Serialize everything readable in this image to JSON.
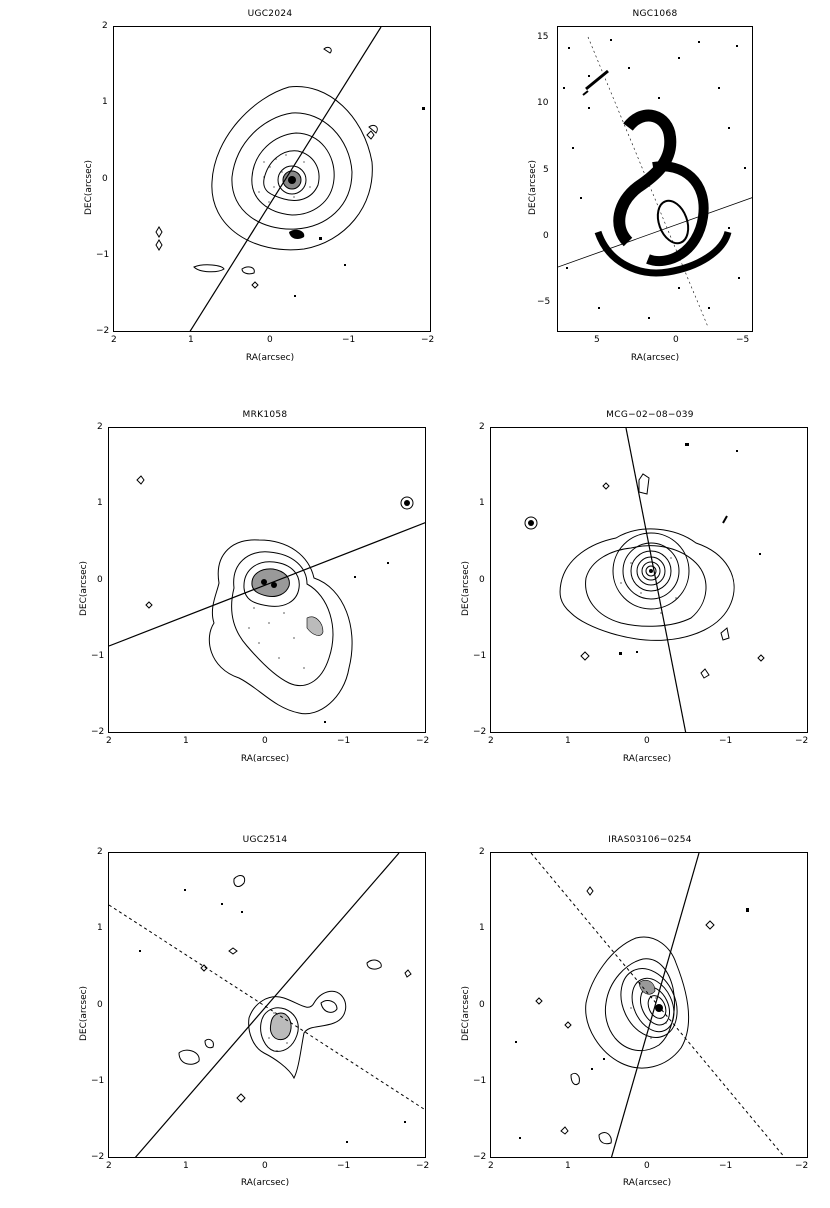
{
  "panels": [
    {
      "title": "UGC2024",
      "xlabel": "RA(arcsec)",
      "ylabel": "DEC(arcsec)",
      "xticks": [
        "2",
        "1",
        "0",
        "−1",
        "−2"
      ],
      "yticks": [
        "2",
        "1",
        "0",
        "−1",
        "−2"
      ]
    },
    {
      "title": "NGC1068",
      "xlabel": "RA(arcsec)",
      "ylabel": "DEC(arcsec)",
      "xticks": [
        "5",
        "0",
        "−5"
      ],
      "yticks": [
        "15",
        "10",
        "5",
        "0",
        "−5"
      ]
    },
    {
      "title": "MRK1058",
      "xlabel": "RA(arcsec)",
      "ylabel": "DEC(arcsec)",
      "xticks": [
        "2",
        "1",
        "0",
        "−1",
        "−2"
      ],
      "yticks": [
        "2",
        "1",
        "0",
        "−1",
        "−2"
      ]
    },
    {
      "title": "MCG−02−08−039",
      "xlabel": "RA(arcsec)",
      "ylabel": "DEC(arcsec)",
      "xticks": [
        "2",
        "1",
        "0",
        "−1",
        "−2"
      ],
      "yticks": [
        "2",
        "1",
        "0",
        "−1",
        "−2"
      ]
    },
    {
      "title": "UGC2514",
      "xlabel": "RA(arcsec)",
      "ylabel": "DEC(arcsec)",
      "xticks": [
        "2",
        "1",
        "0",
        "−1",
        "−2"
      ],
      "yticks": [
        "2",
        "1",
        "0",
        "−1",
        "−2"
      ]
    },
    {
      "title": "IRAS03106−0254",
      "xlabel": "RA(arcsec)",
      "ylabel": "DEC(arcsec)",
      "xticks": [
        "2",
        "1",
        "0",
        "−1",
        "−2"
      ],
      "yticks": [
        "2",
        "1",
        "0",
        "−1",
        "−2"
      ]
    }
  ]
}
